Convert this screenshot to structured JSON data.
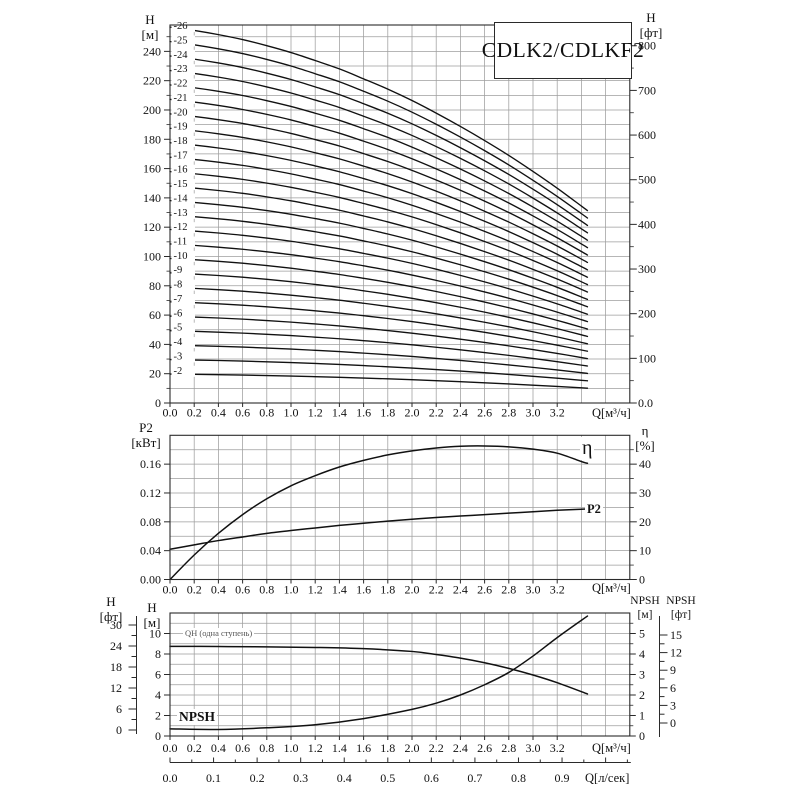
{
  "colors": {
    "ink": "#111111",
    "grid": "#9e9e9e",
    "border": "#2a2a2a",
    "muted": "#555555",
    "bg": "#ffffff"
  },
  "title_box": {
    "label": "CDLK2/CDLKF2"
  },
  "chart_data": {
    "type": "line",
    "top_chart": {
      "left_axis": {
        "header": "H\n[м]",
        "ticks": [
          0,
          20,
          40,
          60,
          80,
          100,
          120,
          140,
          160,
          180,
          200,
          220,
          240
        ],
        "range_m": [
          0,
          258
        ]
      },
      "right_axis": {
        "header": "H\n[фт]",
        "tick_values": [
          0,
          100,
          200,
          300,
          400,
          500,
          600,
          700,
          800
        ],
        "tick_labels": [
          "0.0",
          "100",
          "200",
          "300",
          "400",
          "500",
          "600",
          "700",
          "800"
        ],
        "minor_step": 50
      },
      "x_axis": {
        "label": "Q[м³/ч]",
        "tick_labels": [
          "0.0",
          "0.2",
          "0.4",
          "0.6",
          "0.8",
          "1.0",
          "1.2",
          "1.4",
          "1.6",
          "1.8",
          "2.0",
          "2.2",
          "2.4",
          "2.6",
          "2.8",
          "3.0",
          "3.2"
        ],
        "range": [
          0,
          3.8
        ]
      },
      "stages": [
        2,
        3,
        4,
        5,
        6,
        7,
        8,
        9,
        10,
        11,
        12,
        13,
        14,
        15,
        16,
        17,
        18,
        19,
        20,
        21,
        22,
        23,
        24,
        25,
        26
      ],
      "q": [
        0,
        0.2,
        0.4,
        0.6,
        0.8,
        1.0,
        1.2,
        1.4,
        1.6,
        1.8,
        2.0,
        2.2,
        2.4,
        2.6,
        2.8,
        3.0,
        3.2,
        3.4,
        3.45
      ],
      "single_stage_head_m": [
        9.87,
        9.78,
        9.67,
        9.54,
        9.38,
        9.2,
        8.99,
        8.77,
        8.51,
        8.24,
        7.94,
        7.61,
        7.26,
        6.89,
        6.5,
        6.08,
        5.64,
        5.17,
        5.05
      ]
    },
    "middle_chart": {
      "left_axis": {
        "header": "P2\n[кВт]",
        "tick_labels": [
          "0.00",
          "0.04",
          "0.08",
          "0.12",
          "0.16"
        ],
        "range_kw": [
          0,
          0.2
        ],
        "grid_step": 0.02
      },
      "right_axis": {
        "header": "η\n[%]",
        "ticks": [
          0,
          10,
          20,
          30,
          40
        ],
        "range_pct": [
          0,
          50
        ],
        "minor_step": 5
      },
      "x_axis": {
        "label": "Q[м³/ч]",
        "tick_labels": [
          "0.0",
          "0.2",
          "0.4",
          "0.6",
          "0.8",
          "1.0",
          "1.2",
          "1.4",
          "1.6",
          "1.8",
          "2.0",
          "2.2",
          "2.4",
          "2.6",
          "2.8",
          "3.0",
          "3.2"
        ]
      },
      "series": [
        {
          "name": "η",
          "axis": "right",
          "x": [
            0,
            0.2,
            0.4,
            0.6,
            0.8,
            1.0,
            1.2,
            1.4,
            1.6,
            1.8,
            2.0,
            2.2,
            2.4,
            2.6,
            2.8,
            3.0,
            3.2,
            3.4,
            3.45
          ],
          "y": [
            0,
            8.5,
            16,
            22.5,
            28,
            32.5,
            36,
            39,
            41.3,
            43.2,
            44.6,
            45.6,
            46.2,
            46.3,
            46.0,
            45.2,
            43.8,
            40.9,
            40.3
          ]
        },
        {
          "name": "P2",
          "axis": "left",
          "x": [
            0,
            0.2,
            0.4,
            0.6,
            0.8,
            1.0,
            1.2,
            1.4,
            1.6,
            1.8,
            2.0,
            2.2,
            2.4,
            2.6,
            2.8,
            3.0,
            3.2,
            3.4,
            3.45
          ],
          "y": [
            0.042,
            0.048,
            0.054,
            0.059,
            0.064,
            0.068,
            0.0715,
            0.075,
            0.078,
            0.081,
            0.0835,
            0.086,
            0.088,
            0.09,
            0.092,
            0.094,
            0.096,
            0.0975,
            0.098
          ]
        }
      ]
    },
    "bottom_chart": {
      "left_m_axis": {
        "header": "H\n[м]",
        "ticks": [
          0,
          2,
          4,
          6,
          8,
          10
        ],
        "range_m": [
          0,
          12
        ]
      },
      "left_ft_axis": {
        "header": "H\n[фт]",
        "ticks": [
          0,
          6,
          12,
          18,
          24,
          30
        ]
      },
      "right_npsh_m_axis": {
        "header": "NPSH\n[м]",
        "ticks": [
          0,
          1,
          2,
          3,
          4,
          5
        ],
        "range_m": [
          0,
          6
        ]
      },
      "right_npsh_ft_axis": {
        "header": "NPSH\n[фт]",
        "ticks": [
          0,
          3,
          6,
          9,
          12,
          15
        ]
      },
      "x_axis": {
        "label": "Q[м³/ч]",
        "tick_labels": [
          "0.0",
          "0.2",
          "0.4",
          "0.6",
          "0.8",
          "1.0",
          "1.2",
          "1.4",
          "1.6",
          "1.8",
          "2.0",
          "2.2",
          "2.4",
          "2.6",
          "2.8",
          "3.0",
          "3.2"
        ]
      },
      "x_axis2": {
        "label": "Q[л/сек]",
        "tick_labels": [
          "0.0",
          "0.1",
          "0.2",
          "0.3",
          "0.4",
          "0.5",
          "0.6",
          "0.7",
          "0.8",
          "0.9"
        ]
      },
      "series": [
        {
          "name": "QH (одна ступень)",
          "axis": "left_m",
          "x": [
            0,
            0.4,
            0.8,
            1.2,
            1.6,
            2.0,
            2.2,
            2.4,
            2.6,
            2.8,
            3.0,
            3.2,
            3.45
          ],
          "y": [
            8.75,
            8.73,
            8.7,
            8.64,
            8.52,
            8.25,
            7.95,
            7.6,
            7.15,
            6.6,
            5.95,
            5.2,
            4.1
          ]
        },
        {
          "name": "NPSH",
          "axis": "right_npsh_m",
          "x": [
            0,
            0.4,
            0.8,
            1.2,
            1.6,
            2.0,
            2.2,
            2.4,
            2.6,
            2.8,
            3.0,
            3.2,
            3.45
          ],
          "y": [
            0.35,
            0.32,
            0.4,
            0.55,
            0.85,
            1.3,
            1.6,
            2.0,
            2.5,
            3.1,
            3.9,
            4.8,
            5.85
          ]
        }
      ]
    }
  }
}
